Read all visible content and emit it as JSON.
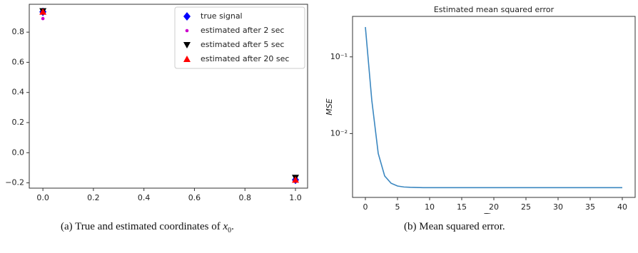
{
  "chart_data": [
    {
      "type": "scatter",
      "series": [
        {
          "name": "true signal",
          "color": "#0000ff",
          "marker": "diamond",
          "x": [
            0,
            1
          ],
          "values": [
            0.935,
            -0.18
          ]
        },
        {
          "name": "estimated after 2 sec",
          "color": "#cc00cc",
          "marker": "dot",
          "x": [
            0,
            1
          ],
          "values": [
            0.89,
            -0.18
          ]
        },
        {
          "name": "estimated after 5 sec",
          "color": "#000000",
          "marker": "triangle-down",
          "x": [
            0,
            1
          ],
          "values": [
            0.94,
            -0.165
          ]
        },
        {
          "name": "estimated after 20 sec",
          "color": "#ff0000",
          "marker": "triangle-up",
          "x": [
            0,
            1
          ],
          "values": [
            0.935,
            -0.18
          ]
        }
      ],
      "xlim": [
        -0.054,
        1.048
      ],
      "ylim": [
        -0.235,
        0.985
      ],
      "xticks": [
        {
          "value": 0,
          "label": "0.0"
        },
        0.2,
        0.4,
        0.6,
        0.8,
        {
          "value": 1,
          "label": "1.0"
        }
      ],
      "yticks": [
        {
          "value": -0.2,
          "label": "−0.2"
        },
        {
          "value": 0,
          "label": "0.0"
        },
        0.2,
        0.4,
        0.6,
        0.8
      ],
      "legend": "upper right"
    },
    {
      "type": "line",
      "title": "Estimated mean squared error",
      "xlabel": "Time",
      "ylabel": "MSE",
      "x": [
        0,
        1,
        2,
        3,
        4,
        5,
        6,
        7,
        8,
        9,
        10,
        11,
        12,
        13,
        14,
        15,
        16,
        17,
        18,
        19,
        20,
        21,
        22,
        23,
        24,
        25,
        26,
        27,
        28,
        29,
        30,
        31,
        32,
        33,
        34,
        35,
        36,
        37,
        38,
        39,
        40
      ],
      "values": [
        0.245,
        0.027,
        0.0055,
        0.0028,
        0.00225,
        0.00207,
        0.00201,
        0.00199,
        0.00198,
        0.00197,
        0.00197,
        0.00197,
        0.00197,
        0.00197,
        0.00197,
        0.00197,
        0.00197,
        0.00197,
        0.00197,
        0.00197,
        0.00197,
        0.00197,
        0.00197,
        0.00197,
        0.00197,
        0.00197,
        0.00197,
        0.00197,
        0.00197,
        0.00197,
        0.00197,
        0.00197,
        0.00197,
        0.00197,
        0.00197,
        0.00197,
        0.00197,
        0.00197,
        0.00197,
        0.00197,
        0.00197
      ],
      "color": "#3b87c0",
      "yscale": "log",
      "xlim": [
        -2,
        42
      ],
      "ylim": [
        0.00147,
        0.337
      ],
      "xticks": [
        0,
        5,
        10,
        15,
        20,
        25,
        30,
        35,
        40
      ],
      "yticks": [
        {
          "value": 0.01,
          "label": "10⁻²"
        },
        {
          "value": 0.1,
          "label": "10⁻¹"
        }
      ]
    }
  ],
  "captions": [
    {
      "tag": "(a)",
      "text": "True and estimated coordinates of",
      "math": "x",
      "sub": "0",
      "end": "."
    },
    {
      "tag": "(b)",
      "text": "Mean squared error."
    }
  ]
}
